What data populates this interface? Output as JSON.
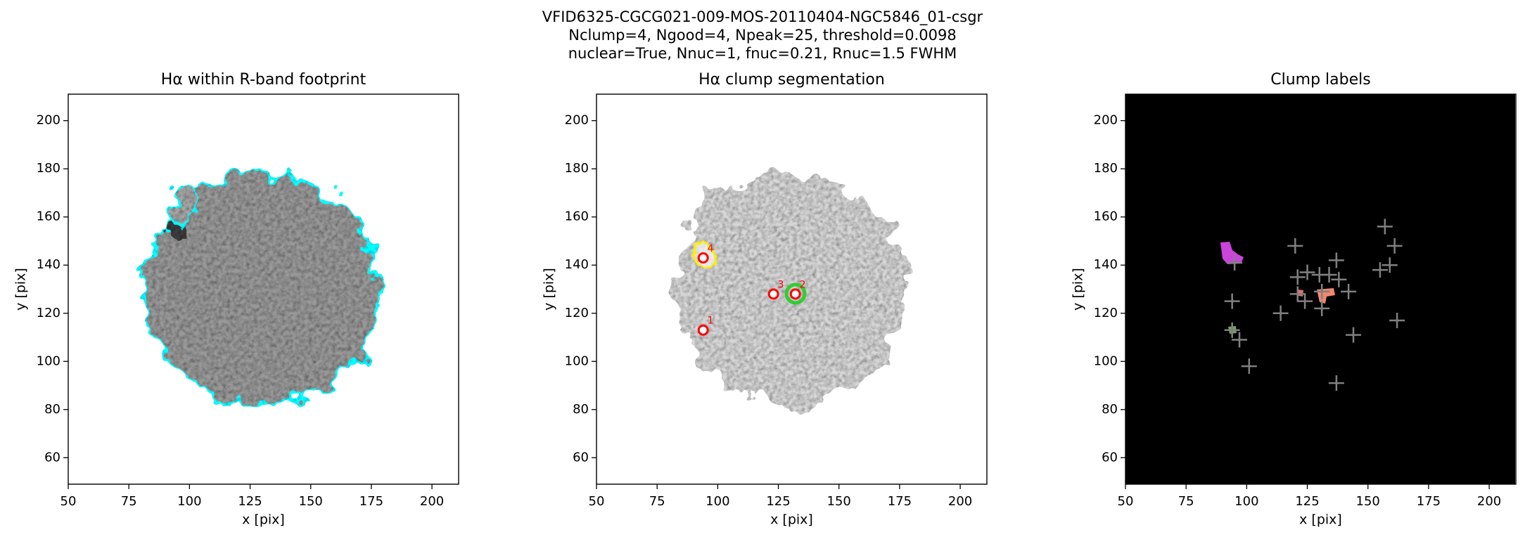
{
  "figure_title": [
    "VFID6325-CGCG021-009-MOS-20110404-NGC5846_01-csgr",
    "Nclump=4, Ngood=4, Npeak=25, threshold=0.0098",
    "nuclear=True, Nnuc=1, fnuc=0.21, Rnuc=1.5 FWHM"
  ],
  "chart_data": [
    {
      "type": "image",
      "title": "Hα within R-band footprint",
      "x_label": "x [pix]",
      "y_label": "y [pix]",
      "xlim": [
        50,
        211
      ],
      "ylim": [
        49,
        211
      ],
      "xticks": [
        50,
        75,
        100,
        125,
        150,
        175,
        200
      ],
      "yticks": [
        60,
        80,
        100,
        120,
        140,
        160,
        180,
        200
      ]
    },
    {
      "type": "scatter",
      "title": "Hα clump segmentation",
      "x_label": "x [pix]",
      "y_label": "y [pix]",
      "xlim": [
        50,
        211
      ],
      "ylim": [
        49,
        211
      ],
      "xticks": [
        50,
        75,
        100,
        125,
        150,
        175,
        200
      ],
      "yticks": [
        60,
        80,
        100,
        120,
        140,
        160,
        180,
        200
      ],
      "x": [
        94,
        132,
        123,
        94
      ],
      "y": [
        113,
        128,
        128,
        143
      ],
      "point_labels": [
        "1",
        "2",
        "3",
        "4"
      ],
      "color": "#ff0000",
      "marker": "o"
    },
    {
      "type": "scatter",
      "title": "Clump labels",
      "x_label": "x [pix]",
      "y_label": "y [pix]",
      "xlim": [
        50,
        211
      ],
      "ylim": [
        49,
        211
      ],
      "xticks": [
        50,
        75,
        100,
        125,
        150,
        175,
        200
      ],
      "yticks": [
        60,
        80,
        100,
        120,
        140,
        160,
        180,
        200
      ],
      "x": [
        157,
        161,
        120,
        137,
        159,
        155,
        125,
        130,
        134,
        138,
        121,
        142,
        121,
        124,
        131,
        114,
        162,
        144,
        94,
        94,
        97,
        101,
        137,
        95,
        131
      ],
      "y": [
        156,
        148,
        148,
        142,
        140,
        138,
        137,
        136,
        136,
        134,
        135,
        129,
        128,
        125,
        122,
        120,
        117,
        111,
        125,
        113,
        109,
        98,
        91,
        141,
        129
      ],
      "color": "#808080",
      "marker": "+"
    }
  ]
}
